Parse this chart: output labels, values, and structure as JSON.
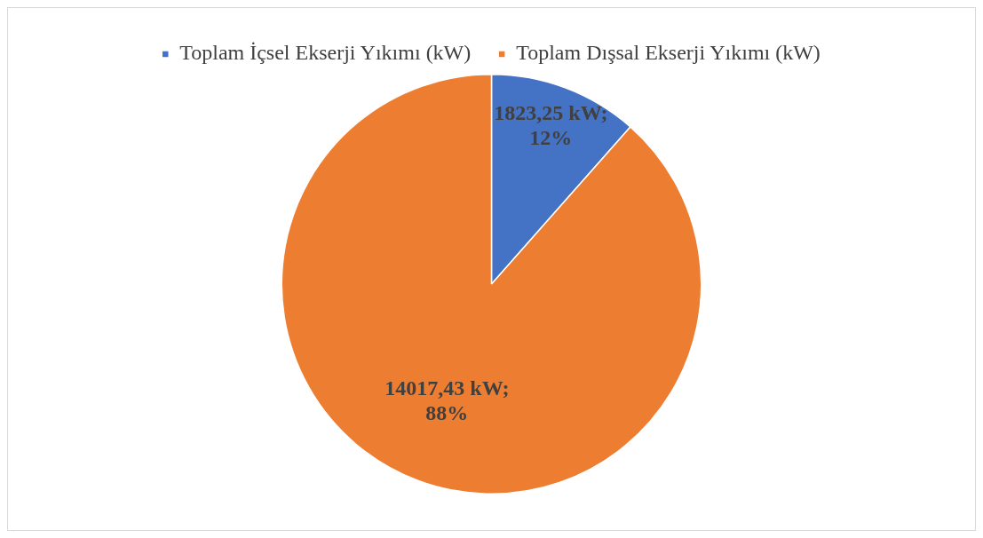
{
  "chart_data": {
    "type": "pie",
    "categories": [
      "Toplam İçsel Ekserji Yıkımı (kW)",
      "Toplam Dışsal Ekserji Yıkımı (kW)"
    ],
    "values": [
      1823.25,
      14017.43
    ],
    "colors": [
      "#4472c4",
      "#ed7d31"
    ],
    "value_labels": [
      "1823,25 kW; 12%",
      "14017,43 kW; 88%"
    ],
    "legend": "top"
  }
}
